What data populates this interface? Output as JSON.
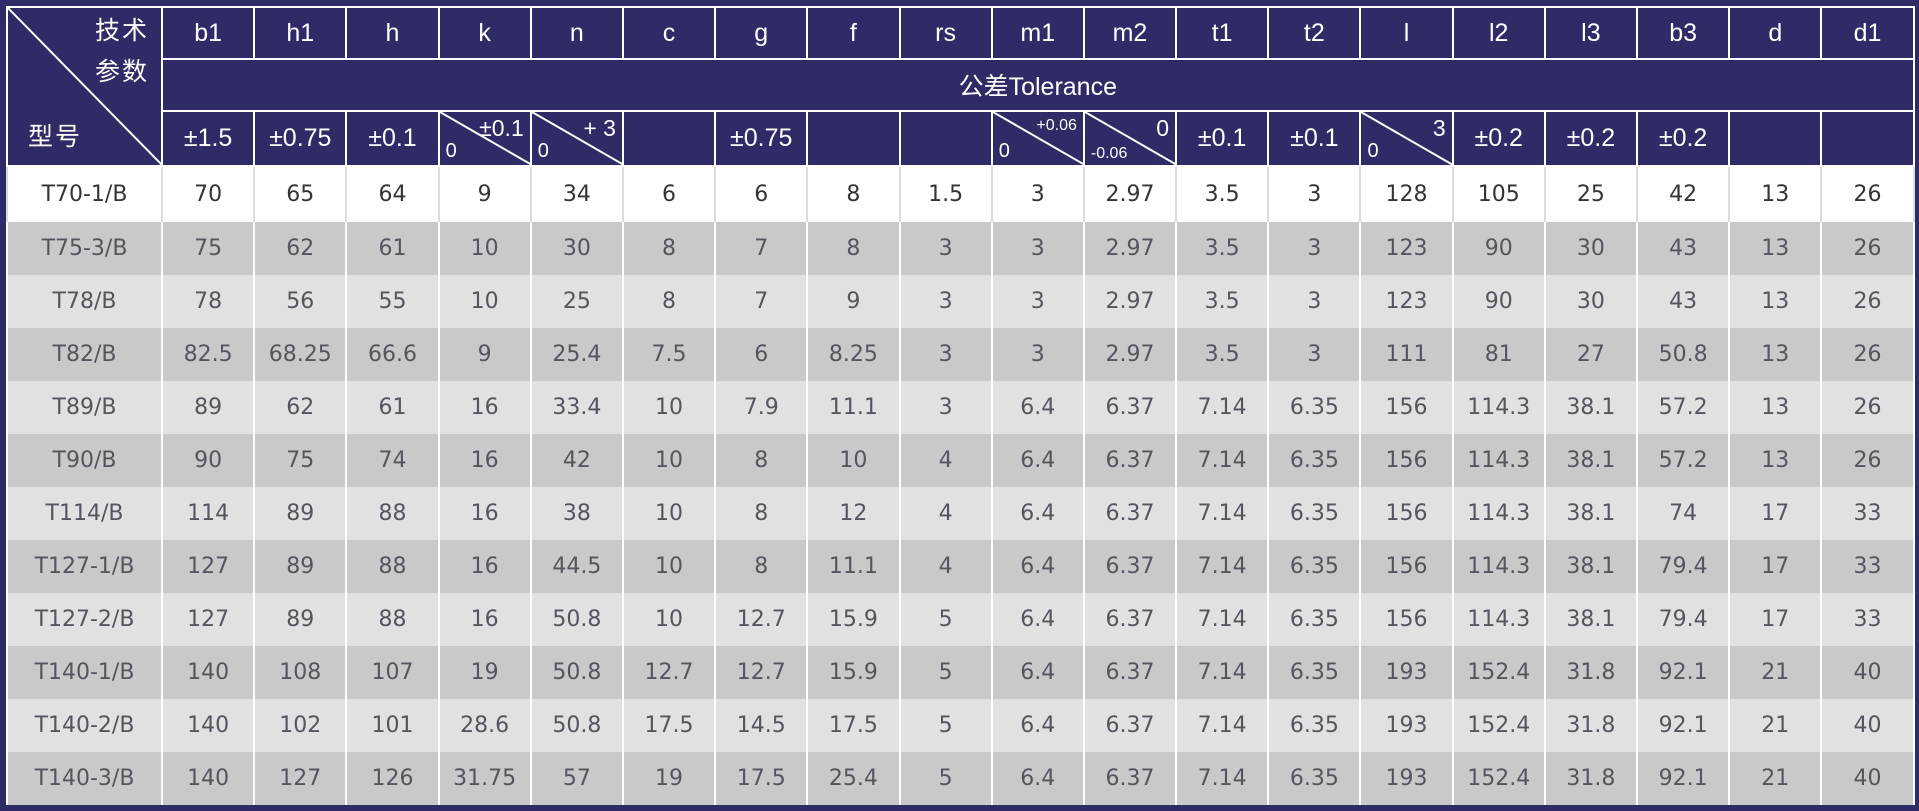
{
  "corner": {
    "line1": "技术",
    "line2": "参数",
    "line3": "型号"
  },
  "tolerance_title": "公差Tolerance",
  "headers": [
    "b1",
    "h1",
    "h",
    "k",
    "n",
    "c",
    "g",
    "f",
    "rs",
    "m1",
    "m2",
    "t1",
    "t2",
    "l",
    "l2",
    "l3",
    "b3",
    "d",
    "d1"
  ],
  "tolerances": [
    {
      "text": "±1.5"
    },
    {
      "text": "±0.75"
    },
    {
      "text": "±0.1"
    },
    {
      "upper": "±0.1",
      "lower": "0"
    },
    {
      "upper": "+ 3",
      "lower": "0"
    },
    {
      "text": ""
    },
    {
      "text": "±0.75"
    },
    {
      "text": ""
    },
    {
      "text": ""
    },
    {
      "upper": "+0.06",
      "lower": "0",
      "small": true
    },
    {
      "upper": "0",
      "lower": "-0.06",
      "small_lower": true
    },
    {
      "text": "±0.1"
    },
    {
      "text": "±0.1"
    },
    {
      "upper": "3",
      "lower": "0"
    },
    {
      "text": "±0.2"
    },
    {
      "text": "±0.2"
    },
    {
      "text": "±0.2"
    },
    {
      "text": ""
    },
    {
      "text": ""
    }
  ],
  "rows": [
    {
      "model": "T70-1/B",
      "values": [
        "70",
        "65",
        "64",
        "9",
        "34",
        "6",
        "6",
        "8",
        "1.5",
        "3",
        "2.97",
        "3.5",
        "3",
        "128",
        "105",
        "25",
        "42",
        "13",
        "26"
      ]
    },
    {
      "model": "T75-3/B",
      "values": [
        "75",
        "62",
        "61",
        "10",
        "30",
        "8",
        "7",
        "8",
        "3",
        "3",
        "2.97",
        "3.5",
        "3",
        "123",
        "90",
        "30",
        "43",
        "13",
        "26"
      ]
    },
    {
      "model": "T78/B",
      "values": [
        "78",
        "56",
        "55",
        "10",
        "25",
        "8",
        "7",
        "9",
        "3",
        "3",
        "2.97",
        "3.5",
        "3",
        "123",
        "90",
        "30",
        "43",
        "13",
        "26"
      ]
    },
    {
      "model": "T82/B",
      "values": [
        "82.5",
        "68.25",
        "66.6",
        "9",
        "25.4",
        "7.5",
        "6",
        "8.25",
        "3",
        "3",
        "2.97",
        "3.5",
        "3",
        "111",
        "81",
        "27",
        "50.8",
        "13",
        "26"
      ]
    },
    {
      "model": "T89/B",
      "values": [
        "89",
        "62",
        "61",
        "16",
        "33.4",
        "10",
        "7.9",
        "11.1",
        "3",
        "6.4",
        "6.37",
        "7.14",
        "6.35",
        "156",
        "114.3",
        "38.1",
        "57.2",
        "13",
        "26"
      ]
    },
    {
      "model": "T90/B",
      "values": [
        "90",
        "75",
        "74",
        "16",
        "42",
        "10",
        "8",
        "10",
        "4",
        "6.4",
        "6.37",
        "7.14",
        "6.35",
        "156",
        "114.3",
        "38.1",
        "57.2",
        "13",
        "26"
      ]
    },
    {
      "model": "T114/B",
      "values": [
        "114",
        "89",
        "88",
        "16",
        "38",
        "10",
        "8",
        "12",
        "4",
        "6.4",
        "6.37",
        "7.14",
        "6.35",
        "156",
        "114.3",
        "38.1",
        "74",
        "17",
        "33"
      ]
    },
    {
      "model": "T127-1/B",
      "values": [
        "127",
        "89",
        "88",
        "16",
        "44.5",
        "10",
        "8",
        "11.1",
        "4",
        "6.4",
        "6.37",
        "7.14",
        "6.35",
        "156",
        "114.3",
        "38.1",
        "79.4",
        "17",
        "33"
      ]
    },
    {
      "model": "T127-2/B",
      "values": [
        "127",
        "89",
        "88",
        "16",
        "50.8",
        "10",
        "12.7",
        "15.9",
        "5",
        "6.4",
        "6.37",
        "7.14",
        "6.35",
        "156",
        "114.3",
        "38.1",
        "79.4",
        "17",
        "33"
      ]
    },
    {
      "model": "T140-1/B",
      "values": [
        "140",
        "108",
        "107",
        "19",
        "50.8",
        "12.7",
        "12.7",
        "15.9",
        "5",
        "6.4",
        "6.37",
        "7.14",
        "6.35",
        "193",
        "152.4",
        "31.8",
        "92.1",
        "21",
        "40"
      ]
    },
    {
      "model": "T140-2/B",
      "values": [
        "140",
        "102",
        "101",
        "28.6",
        "50.8",
        "17.5",
        "14.5",
        "17.5",
        "5",
        "6.4",
        "6.37",
        "7.14",
        "6.35",
        "193",
        "152.4",
        "31.8",
        "92.1",
        "21",
        "40"
      ]
    },
    {
      "model": "T140-3/B",
      "values": [
        "140",
        "127",
        "126",
        "31.75",
        "57",
        "19",
        "17.5",
        "25.4",
        "5",
        "6.4",
        "6.37",
        "7.14",
        "6.35",
        "193",
        "152.4",
        "31.8",
        "92.1",
        "21",
        "40"
      ]
    }
  ]
}
